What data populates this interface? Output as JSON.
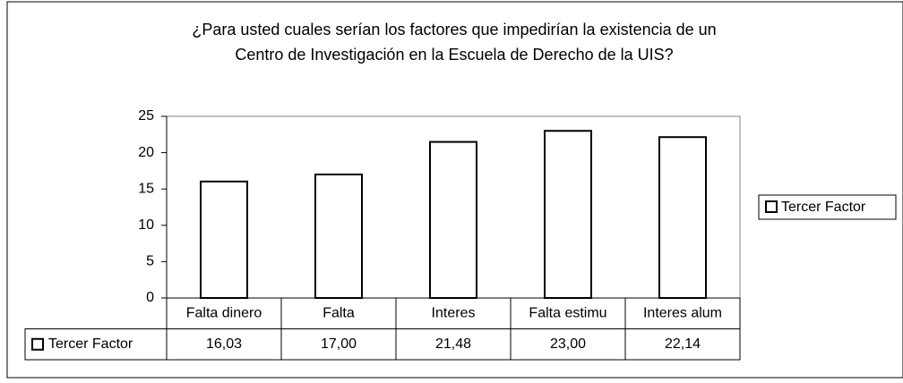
{
  "chart_data": {
    "type": "bar",
    "title": [
      "¿Para usted cuales serían los factores que impedirían la existencia de un",
      "Centro de Investigación en la Escuela de Derecho de la UIS?"
    ],
    "categories": [
      "Falta dinero",
      "Falta",
      "Interes",
      "Falta estimu",
      "Interes alum"
    ],
    "series": [
      {
        "name": "Tercer Factor",
        "color": "#ffffff",
        "values": [
          16.03,
          17.0,
          21.48,
          23.0,
          22.14
        ],
        "value_labels": [
          "16,03",
          "17,00",
          "21,48",
          "23,00",
          "22,14"
        ]
      }
    ],
    "ylim": [
      0,
      25
    ],
    "yticks": [
      0,
      5,
      10,
      15,
      20,
      25
    ],
    "grid": false,
    "legend": "right",
    "data_table": true
  }
}
